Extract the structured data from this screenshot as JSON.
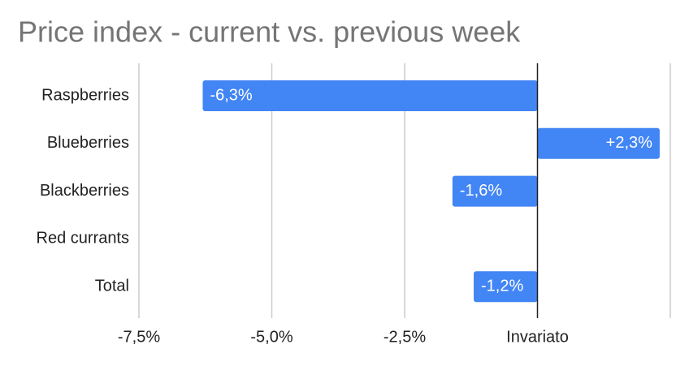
{
  "chart_data": {
    "type": "bar",
    "orientation": "horizontal",
    "title": "Price index - current vs. previous week",
    "categories": [
      "Raspberries",
      "Blueberries",
      "Blackberries",
      "Red currants",
      "Total"
    ],
    "values": [
      -6.3,
      2.3,
      -1.6,
      null,
      -1.2
    ],
    "value_labels": [
      "-6,3%",
      "+2,3%",
      "-1,6%",
      null,
      "-1,2%"
    ],
    "color": "#4285f4",
    "xlim": [
      -7.5,
      2.5
    ],
    "xticks": [
      {
        "value": -7.5,
        "label": "-7,5%"
      },
      {
        "value": -5,
        "label": "-5,0%"
      },
      {
        "value": -2.5,
        "label": "-2,5%"
      },
      {
        "value": 0,
        "label": "Invariato"
      }
    ],
    "grid": true
  }
}
